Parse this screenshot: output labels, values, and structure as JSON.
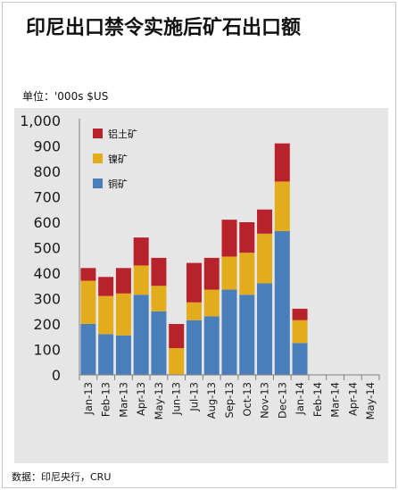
{
  "header": {
    "title": "印尼出口禁令实施后矿石出口额",
    "unit_label": "单位：'000s $US",
    "source": "数据：印尼央行，CRU"
  },
  "chart_data": {
    "type": "bar",
    "stacked": true,
    "title": "印尼出口禁令实施后矿石出口额",
    "xlabel": "",
    "ylabel": "",
    "ylim": [
      0,
      1000
    ],
    "yticks": [
      0,
      100,
      200,
      300,
      400,
      500,
      600,
      700,
      800,
      900,
      1000
    ],
    "ytick_labels": [
      "0",
      "100",
      "200",
      "300",
      "400",
      "500",
      "600",
      "700",
      "800",
      "900",
      "1,000"
    ],
    "grid": false,
    "legend_position": "top-left",
    "categories": [
      "Jan-13",
      "Feb-13",
      "Mar-13",
      "Apr-13",
      "May-13",
      "Jun-13",
      "Jul-13",
      "Aug-13",
      "Sep-13",
      "Oct-13",
      "Nov-13",
      "Dec-13",
      "Jan-14",
      "Feb-14",
      "Mar-14",
      "Apr-14",
      "May-14"
    ],
    "series": [
      {
        "name": "铜矿",
        "color": "#4a7ebb",
        "values": [
          200,
          160,
          155,
          315,
          250,
          0,
          215,
          230,
          335,
          315,
          360,
          565,
          125,
          0,
          0,
          0,
          0
        ]
      },
      {
        "name": "镍矿",
        "color": "#e2ac1c",
        "values": [
          170,
          150,
          165,
          115,
          100,
          105,
          70,
          105,
          130,
          165,
          195,
          195,
          90,
          0,
          0,
          0,
          0
        ]
      },
      {
        "name": "铝土矿",
        "color": "#b8232b",
        "values": [
          50,
          75,
          100,
          110,
          110,
          95,
          155,
          125,
          145,
          120,
          95,
          150,
          45,
          0,
          0,
          0,
          0
        ]
      }
    ]
  }
}
